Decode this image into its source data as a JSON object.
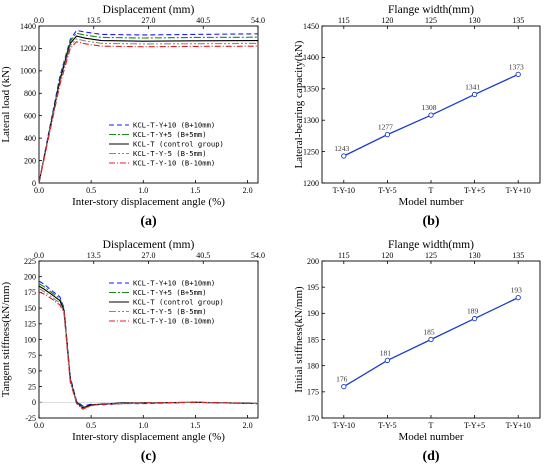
{
  "figure": {
    "panels": [
      {
        "id": "a",
        "label": "(a)"
      },
      {
        "id": "b",
        "label": "(b)"
      },
      {
        "id": "c",
        "label": "(c)"
      },
      {
        "id": "d",
        "label": "(d)"
      }
    ]
  },
  "chart_data": [
    {
      "id": "a",
      "type": "line",
      "panel_label": "(a)",
      "xlabel": "Inter-story displacement angle (%)",
      "ylabel": "Lateral load (kN)",
      "x2label": "Displacement (mm)",
      "xlim": [
        0,
        2.1
      ],
      "ylim": [
        0,
        1400
      ],
      "xticks": [
        0.0,
        0.5,
        1.0,
        1.5,
        2.0
      ],
      "yticks": [
        0,
        200,
        400,
        600,
        800,
        1000,
        1200,
        1400
      ],
      "x2ticks": [
        "0.0",
        "13.5",
        "27.0",
        "40.5",
        "54.0"
      ],
      "x2tick_positions": [
        0.0,
        0.525,
        1.05,
        1.575,
        2.1
      ],
      "legend_position": "lower-right",
      "series": [
        {
          "name": "KCL-T-Y+10 (B+10mm)",
          "color": "#1a1aff",
          "dash": "5,3",
          "x": [
            0,
            0.1,
            0.2,
            0.3,
            0.36,
            0.45,
            0.6,
            1.0,
            1.5,
            2.1
          ],
          "y": [
            0,
            480,
            950,
            1280,
            1360,
            1345,
            1325,
            1320,
            1325,
            1330
          ]
        },
        {
          "name": "KCL-T-Y+5 (B+5mm)",
          "color": "#1a8a1a",
          "dash": "7,2,2,2",
          "x": [
            0,
            0.1,
            0.2,
            0.3,
            0.36,
            0.45,
            0.6,
            1.0,
            1.5,
            2.1
          ],
          "y": [
            0,
            470,
            930,
            1265,
            1335,
            1318,
            1298,
            1293,
            1298,
            1300
          ]
        },
        {
          "name": "KCL-T (control group)",
          "color": "#000000",
          "dash": "",
          "x": [
            0,
            0.1,
            0.2,
            0.3,
            0.36,
            0.45,
            0.6,
            1.0,
            1.5,
            2.1
          ],
          "y": [
            0,
            460,
            915,
            1245,
            1310,
            1290,
            1270,
            1265,
            1268,
            1270
          ]
        },
        {
          "name": "KCL-T-Y-5 (B-5mm)",
          "color": "#888888",
          "dash": "7,2,2,2,2,2",
          "x": [
            0,
            0.1,
            0.2,
            0.3,
            0.36,
            0.45,
            0.6,
            1.0,
            1.5,
            2.1
          ],
          "y": [
            0,
            450,
            895,
            1225,
            1285,
            1265,
            1245,
            1240,
            1242,
            1245
          ]
        },
        {
          "name": "KCL-T-Y-10 (B-10mm)",
          "color": "#e02020",
          "dash": "6,2,1,2",
          "x": [
            0,
            0.1,
            0.2,
            0.3,
            0.36,
            0.45,
            0.6,
            1.0,
            1.5,
            2.1
          ],
          "y": [
            0,
            440,
            875,
            1200,
            1260,
            1240,
            1220,
            1215,
            1218,
            1220
          ]
        }
      ]
    },
    {
      "id": "b",
      "type": "line",
      "panel_label": "(b)",
      "xlabel": "Model number",
      "ylabel": "Lateral-bearing capacity(kN)",
      "x2label": "Flange width(mm)",
      "categories": [
        "T-Y-10",
        "T-Y-5",
        "T",
        "T-Y+5",
        "T-Y+10"
      ],
      "x2ticks": [
        "115",
        "120",
        "125",
        "130",
        "135"
      ],
      "ylim": [
        1200,
        1450
      ],
      "yticks": [
        1200,
        1250,
        1300,
        1350,
        1400,
        1450
      ],
      "series": [
        {
          "color": "#1a3ec8",
          "values": [
            1243,
            1277,
            1308,
            1341,
            1373
          ],
          "labels": [
            "1243",
            "1277",
            "1308",
            "1341",
            "1373"
          ]
        }
      ]
    },
    {
      "id": "c",
      "type": "line",
      "panel_label": "(c)",
      "xlabel": "Inter-story displacement angle (%)",
      "ylabel": "Tangent stiffness(kN/mm)",
      "x2label": "Displacement (mm)",
      "xlim": [
        0,
        2.1
      ],
      "ylim": [
        -25,
        225
      ],
      "xticks": [
        0.0,
        0.5,
        1.0,
        1.5,
        2.0
      ],
      "yticks": [
        -25,
        0,
        25,
        50,
        75,
        100,
        125,
        150,
        175,
        200,
        225
      ],
      "x2ticks": [
        "0.0",
        "13.5",
        "27.0",
        "40.5",
        "54.0"
      ],
      "x2tick_positions": [
        0.0,
        0.525,
        1.05,
        1.575,
        2.1
      ],
      "legend_position": "upper-right",
      "series": [
        {
          "name": "KCL-T-Y+10 (B+10mm)",
          "color": "#1a1aff",
          "dash": "5,3",
          "x": [
            0,
            0.05,
            0.12,
            0.2,
            0.24,
            0.3,
            0.36,
            0.42,
            0.5,
            0.6,
            0.8,
            1.0,
            1.5,
            2.1
          ],
          "y": [
            193,
            188,
            178,
            168,
            150,
            40,
            2,
            -6,
            -3,
            -4,
            -2,
            -2,
            0,
            -2
          ]
        },
        {
          "name": "KCL-T-Y+5 (B+5mm)",
          "color": "#1a8a1a",
          "dash": "7,2,2,2",
          "x": [
            0,
            0.05,
            0.12,
            0.2,
            0.24,
            0.3,
            0.36,
            0.42,
            0.5,
            0.6,
            0.8,
            1.0,
            1.5,
            2.1
          ],
          "y": [
            189,
            184,
            175,
            165,
            148,
            38,
            1,
            -8,
            -5,
            -3,
            -2,
            -1,
            0,
            -2
          ]
        },
        {
          "name": "KCL-T (control group)",
          "color": "#000000",
          "dash": "",
          "x": [
            0,
            0.05,
            0.12,
            0.2,
            0.24,
            0.3,
            0.36,
            0.42,
            0.5,
            0.6,
            0.8,
            1.0,
            1.5,
            2.1
          ],
          "y": [
            185,
            180,
            172,
            162,
            146,
            36,
            0,
            -9,
            -4,
            -3,
            -1,
            -1,
            0,
            -2
          ]
        },
        {
          "name": "KCL-T-Y-5 (B-5mm)",
          "color": "#888888",
          "dash": "7,2,2,2,2,2",
          "x": [
            0,
            0.05,
            0.12,
            0.2,
            0.24,
            0.3,
            0.36,
            0.42,
            0.5,
            0.6,
            0.8,
            1.0,
            1.5,
            2.1
          ],
          "y": [
            181,
            176,
            168,
            158,
            144,
            34,
            -1,
            -10,
            -6,
            -2,
            -2,
            -1,
            0,
            -2
          ]
        },
        {
          "name": "KCL-T-Y-10 (B-10mm)",
          "color": "#e02020",
          "dash": "6,2,1,2",
          "x": [
            0,
            0.05,
            0.12,
            0.2,
            0.24,
            0.3,
            0.36,
            0.42,
            0.5,
            0.6,
            0.8,
            1.0,
            1.5,
            2.1
          ],
          "y": [
            176,
            172,
            165,
            155,
            142,
            32,
            -2,
            -11,
            -5,
            -3,
            -2,
            -1,
            0,
            -2
          ]
        }
      ]
    },
    {
      "id": "d",
      "type": "line",
      "panel_label": "(d)",
      "xlabel": "Model number",
      "ylabel": "Initial stiffness(kN/mm)",
      "x2label": "Flange width(mm)",
      "categories": [
        "T-Y-10",
        "T-Y-5",
        "T",
        "T-Y+5",
        "T-Y+10"
      ],
      "x2ticks": [
        "115",
        "120",
        "125",
        "130",
        "135"
      ],
      "ylim": [
        170,
        200
      ],
      "yticks": [
        170,
        175,
        180,
        185,
        190,
        195,
        200
      ],
      "series": [
        {
          "color": "#1a3ec8",
          "values": [
            176,
            181,
            185,
            189,
            193
          ],
          "labels": [
            "176",
            "181",
            "185",
            "189",
            "193"
          ]
        }
      ]
    }
  ]
}
